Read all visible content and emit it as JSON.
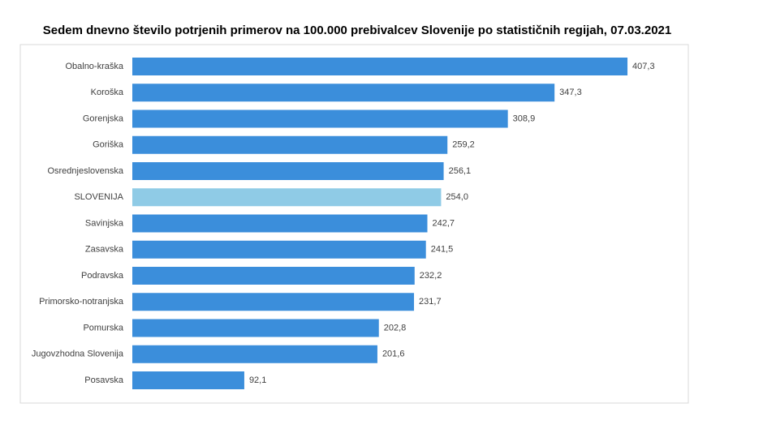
{
  "chart_data": {
    "type": "hbar",
    "title": "Sedem dnevno število potrjenih primerov na 100.000 prebivalcev Slovenije po statističnih regijah, 07.03.2021",
    "categories": [
      "Obalno-kraška",
      "Koroška",
      "Gorenjska",
      "Goriška",
      "Osrednjeslovenska",
      "SLOVENIJA",
      "Savinjska",
      "Zasavska",
      "Podravska",
      "Primorsko-notranjska",
      "Pomurska",
      "Jugovzhodna Slovenija",
      "Posavska"
    ],
    "values": [
      407.3,
      347.3,
      308.9,
      259.2,
      256.1,
      254.0,
      242.7,
      241.5,
      232.2,
      231.7,
      202.8,
      201.6,
      92.1
    ],
    "value_labels": [
      "407,3",
      "347,3",
      "308,9",
      "259,2",
      "256,1",
      "254,0",
      "242,7",
      "241,5",
      "232,2",
      "231,7",
      "202,8",
      "201,6",
      "92,1"
    ],
    "colors": [
      "#3b8edb",
      "#3b8edb",
      "#3b8edb",
      "#3b8edb",
      "#3b8edb",
      "#8fcbe6",
      "#3b8edb",
      "#3b8edb",
      "#3b8edb",
      "#3b8edb",
      "#3b8edb",
      "#3b8edb",
      "#3b8edb"
    ],
    "xlim": [
      0,
      450
    ]
  }
}
